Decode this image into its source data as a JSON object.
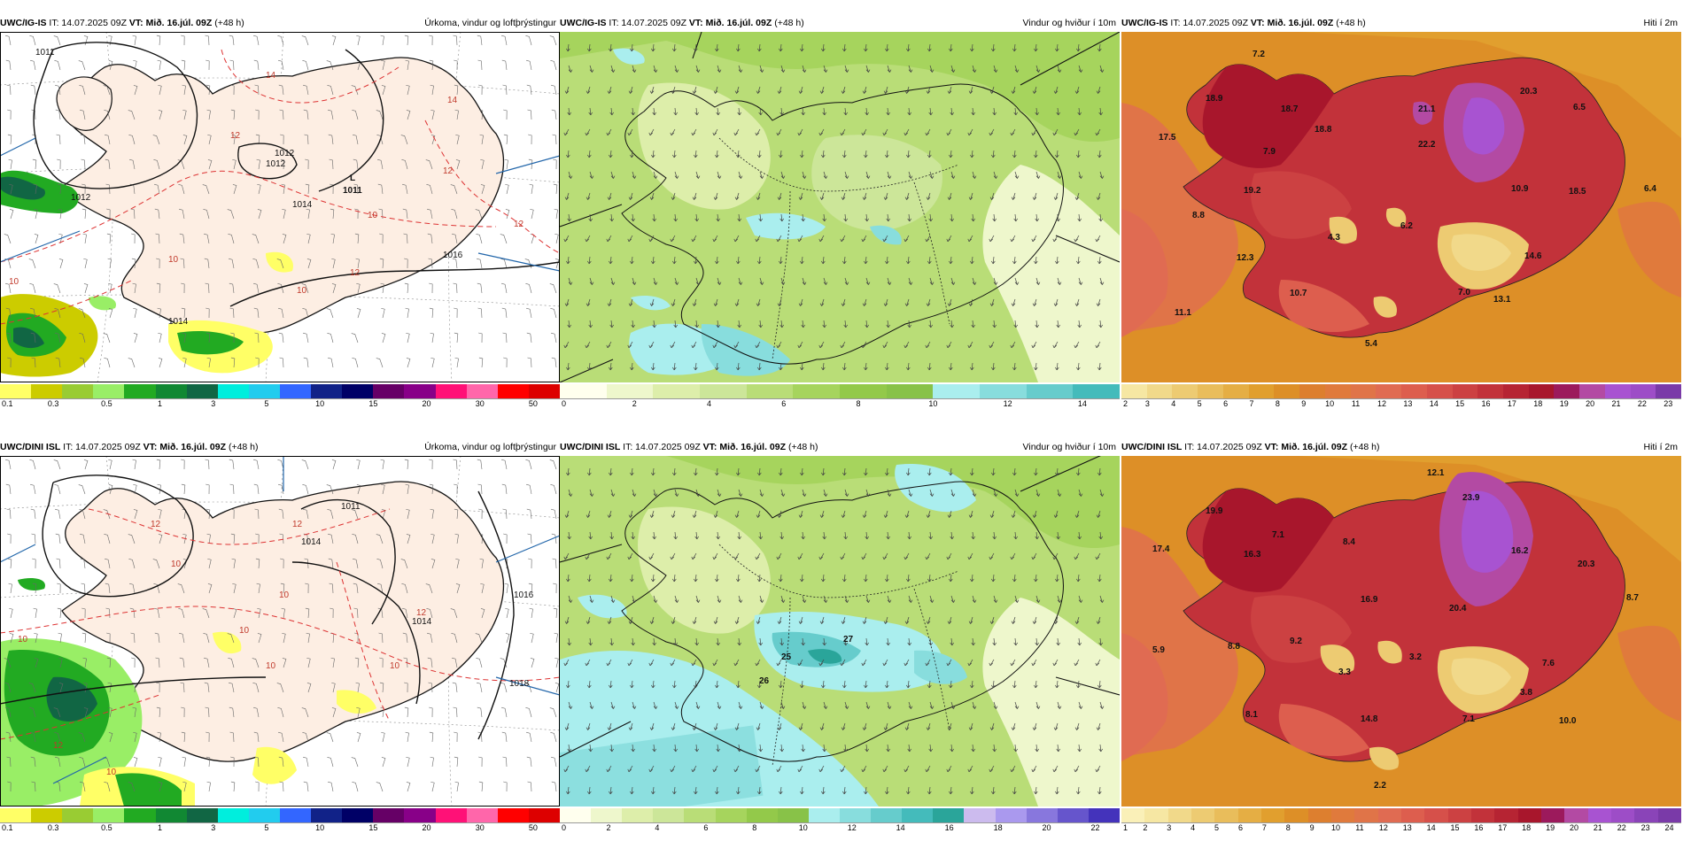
{
  "panels": {
    "p1": {
      "source": "UWC/IG-IS",
      "it": "IT: 14.07.2025 09Z",
      "vt": "VT: Mið. 16.júl. 09Z",
      "lead": "(+48 h)",
      "title": "Úrkoma, vindur og loftþrýstingur",
      "colorbar_colors": [
        "#ffff66",
        "#cccc00",
        "#99cc33",
        "#99ee66",
        "#22aa22",
        "#118833",
        "#116644",
        "#00eedd",
        "#22ccee",
        "#3366ff",
        "#112288",
        "#000066",
        "#660066",
        "#880088",
        "#ff1177",
        "#ff66aa",
        "#ff0000",
        "#dd0000"
      ],
      "ticks": [
        "0.1",
        "0.3",
        "0.5",
        "1",
        "3",
        "5",
        "10",
        "15",
        "20",
        "30",
        "50"
      ],
      "pressure_labels": [
        "1011",
        "1012",
        "1012",
        "1014",
        "1016",
        "1014",
        "1012"
      ],
      "isotherm_labels": [
        "14",
        "12",
        "14",
        "10",
        "12",
        "12",
        "10",
        "10",
        "12",
        "10"
      ],
      "low_marker": "L",
      "low_value": "1011"
    },
    "p2": {
      "source": "UWC/IG-IS",
      "it": "IT: 14.07.2025 09Z",
      "vt": "VT: Mið. 16.júl. 09Z",
      "lead": "(+48 h)",
      "title": "Vindur og hviður í 10m",
      "colorbar_colors": [
        "#ffffee",
        "#eef7cc",
        "#ddeeaa",
        "#cce699",
        "#b9dd77",
        "#a6d45d",
        "#93c94a",
        "#88c248",
        "#aaeeee",
        "#88dddd",
        "#66cccc",
        "#44bbbb"
      ],
      "ticks": [
        "0",
        "2",
        "4",
        "6",
        "8",
        "10",
        "12",
        "14"
      ]
    },
    "p3": {
      "source": "UWC/IG-IS",
      "it": "IT: 14.07.2025 09Z",
      "vt": "VT: Mið. 16.júl. 09Z",
      "lead": "(+48 h)",
      "title": "Hiti í 2m",
      "ticks": [
        "2",
        "3",
        "4",
        "5",
        "6",
        "7",
        "8",
        "9",
        "10",
        "11",
        "12",
        "13",
        "14",
        "15",
        "16",
        "17",
        "18",
        "19",
        "20",
        "21",
        "22",
        "23"
      ],
      "colorbar_colors": [
        "#f6e7a3",
        "#f1d98a",
        "#edcb72",
        "#e9bd5b",
        "#e5ae44",
        "#e19f2e",
        "#dd8f27",
        "#dd7f2f",
        "#e07a3c",
        "#e07448",
        "#e06b52",
        "#dd5e4e",
        "#d6504a",
        "#cc4142",
        "#c2323a",
        "#b62433",
        "#a8162c",
        "#9c1a5c",
        "#b34aa3",
        "#a853d1",
        "#9d4dc7",
        "#7a3aa8"
      ],
      "values": [
        "7.2",
        "18.9",
        "18.7",
        "17.5",
        "7.9",
        "19.2",
        "8.8",
        "18.8",
        "22.2",
        "21.1",
        "20.3",
        "6.5",
        "10.9",
        "18.5",
        "6.4",
        "4.3",
        "6.2",
        "12.3",
        "10.7",
        "14.6",
        "7.0",
        "13.1",
        "11.1",
        "5.4"
      ]
    },
    "p4": {
      "source": "UWC/DINI ISL",
      "it": "IT: 14.07.2025 09Z",
      "vt": "VT: Mið. 16.júl. 09Z",
      "lead": "(+48 h)",
      "title": "Úrkoma, vindur og loftþrýstingur",
      "colorbar_colors": [
        "#ffff66",
        "#cccc00",
        "#99cc33",
        "#99ee66",
        "#22aa22",
        "#118833",
        "#116644",
        "#00eedd",
        "#22ccee",
        "#3366ff",
        "#112288",
        "#000066",
        "#660066",
        "#880088",
        "#ff1177",
        "#ff66aa",
        "#ff0000",
        "#dd0000"
      ],
      "ticks": [
        "0.1",
        "0.3",
        "0.5",
        "1",
        "3",
        "5",
        "10",
        "15",
        "20",
        "30",
        "50"
      ],
      "pressure_labels": [
        "1011",
        "1014",
        "1016",
        "1018",
        "1014"
      ],
      "isotherm_labels": [
        "12",
        "10",
        "12",
        "10",
        "10",
        "12",
        "10",
        "10",
        "10",
        "12",
        "10"
      ]
    },
    "p5": {
      "source": "UWC/DINI ISL",
      "it": "IT: 14.07.2025 09Z",
      "vt": "VT: Mið. 16.júl. 09Z",
      "lead": "(+48 h)",
      "title": "Vindur og hviður í 10m",
      "colorbar_colors": [
        "#ffffee",
        "#eef7cc",
        "#ddeeaa",
        "#cce699",
        "#b9dd77",
        "#a6d45d",
        "#93c94a",
        "#88c248",
        "#aaeeee",
        "#88dddd",
        "#66cccc",
        "#44bbbb",
        "#2aa59a",
        "#ccbbee",
        "#aa99ee",
        "#8877dd",
        "#6655cc",
        "#4433bb"
      ],
      "ticks": [
        "0",
        "2",
        "4",
        "6",
        "8",
        "10",
        "12",
        "14",
        "16",
        "18",
        "20",
        "22"
      ],
      "gust_labels": [
        "25",
        "27",
        "26"
      ]
    },
    "p6": {
      "source": "UWC/DINI ISL",
      "it": "IT: 14.07.2025 09Z",
      "vt": "VT: Mið. 16.júl. 09Z",
      "lead": "(+48 h)",
      "title": "Hiti í 2m",
      "ticks": [
        "1",
        "2",
        "3",
        "4",
        "5",
        "6",
        "7",
        "8",
        "9",
        "10",
        "11",
        "12",
        "13",
        "14",
        "15",
        "16",
        "17",
        "18",
        "19",
        "20",
        "21",
        "22",
        "23",
        "24"
      ],
      "colorbar_colors": [
        "#faf0b8",
        "#f6e7a3",
        "#f1d98a",
        "#edcb72",
        "#e9bd5b",
        "#e5ae44",
        "#e19f2e",
        "#dd8f27",
        "#dd7f2f",
        "#e07a3c",
        "#e07448",
        "#e06b52",
        "#dd5e4e",
        "#d6504a",
        "#cc4142",
        "#c2323a",
        "#b62433",
        "#a8162c",
        "#9c1a5c",
        "#b34aa3",
        "#a853d1",
        "#9d4dc7",
        "#8a44b8",
        "#7a3aa8"
      ],
      "values": [
        "12.1",
        "19.9",
        "7.1",
        "17.4",
        "16.3",
        "23.9",
        "8.4",
        "16.2",
        "20.3",
        "5.9",
        "8.8",
        "9.2",
        "16.9",
        "20.4",
        "8.7",
        "3.3",
        "3.2",
        "7.6",
        "8.1",
        "14.8",
        "7.1",
        "3.8",
        "10.0",
        "2.2"
      ]
    }
  }
}
